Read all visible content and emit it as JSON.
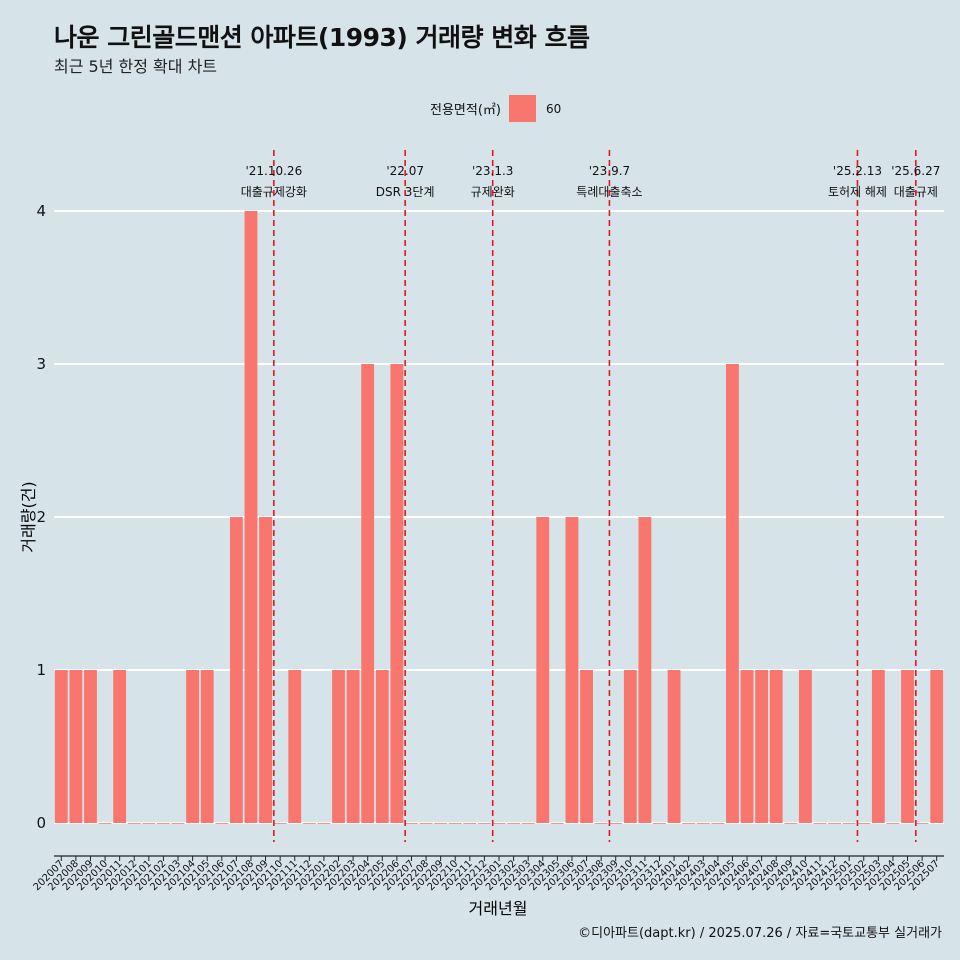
{
  "title": "나운 그린골드맨션 아파트(1993) 거래량 변화 흐름",
  "subtitle": "최근 5년 한정 확대 차트",
  "legend": {
    "title": "전용면적(㎡)",
    "entry": "60",
    "color": "#f8766d"
  },
  "caption": "©디아파트(dapt.kr) / 2025.07.26 / 자료=국토교통부 실거래가",
  "chart_data": {
    "type": "bar",
    "xlabel": "거래년월",
    "ylabel": "거래량(건)",
    "ylim": [
      0,
      4
    ],
    "yticks": [
      0,
      1,
      2,
      3,
      4
    ],
    "grid": true,
    "legend_position": "top",
    "bar_color": "#f8766d",
    "categories": [
      "202007",
      "202008",
      "202009",
      "202010",
      "202011",
      "202012",
      "202101",
      "202102",
      "202103",
      "202104",
      "202105",
      "202106",
      "202107",
      "202108",
      "202109",
      "202110",
      "202111",
      "202112",
      "202201",
      "202202",
      "202203",
      "202204",
      "202205",
      "202206",
      "202207",
      "202208",
      "202209",
      "202210",
      "202211",
      "202212",
      "202301",
      "202302",
      "202303",
      "202304",
      "202305",
      "202306",
      "202307",
      "202308",
      "202309",
      "202310",
      "202311",
      "202312",
      "202401",
      "202402",
      "202403",
      "202404",
      "202405",
      "202406",
      "202407",
      "202408",
      "202409",
      "202410",
      "202411",
      "202412",
      "202501",
      "202502",
      "202503",
      "202504",
      "202505",
      "202506",
      "202507"
    ],
    "series": [
      {
        "values": [
          1,
          1,
          1,
          0,
          1,
          0,
          0,
          0,
          0,
          1,
          1,
          0,
          2,
          4,
          2,
          0,
          1,
          0,
          0,
          1,
          1,
          3,
          1,
          3,
          0,
          0,
          0,
          0,
          0,
          0,
          0,
          0,
          0,
          2,
          0,
          2,
          1,
          0,
          0,
          1,
          2,
          0,
          1,
          0,
          0,
          0,
          3,
          1,
          1,
          1,
          0,
          1,
          0,
          0,
          0,
          0,
          1,
          0,
          1,
          0,
          1
        ]
      }
    ],
    "annotations": [
      {
        "date": "'21.10.26",
        "label": "대출규제강화",
        "category": "202110"
      },
      {
        "date": "'22.07",
        "label": "DSR 3단계",
        "category": "202207"
      },
      {
        "date": "'23.1.3",
        "label": "규제완화",
        "category": "202301"
      },
      {
        "date": "'23.9.7",
        "label": "특례대출축소",
        "category": "202309"
      },
      {
        "date": "'25.2.13",
        "label": "토허제 해제",
        "category": "202502"
      },
      {
        "date": "'25.6.27",
        "label": "대출규제",
        "category": "202506"
      }
    ],
    "annotation_color": "#e8141e"
  }
}
